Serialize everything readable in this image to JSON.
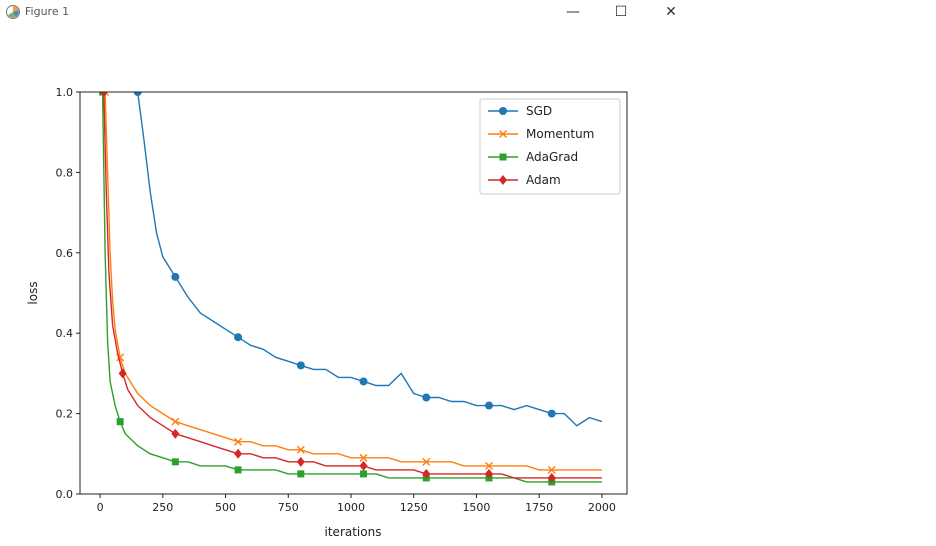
{
  "window": {
    "title": "Figure 1",
    "minimize_icon": "minimize-icon",
    "maximize_icon": "maximize-icon",
    "close_icon": "close-icon"
  },
  "chart_data": {
    "type": "line",
    "title": "",
    "xlabel": "iterations",
    "ylabel": "loss",
    "xlim": [
      -80,
      2100
    ],
    "ylim": [
      0,
      1.0
    ],
    "xticks": [
      0,
      250,
      500,
      750,
      1000,
      1250,
      1500,
      1750,
      2000
    ],
    "yticks": [
      0.0,
      0.2,
      0.4,
      0.6,
      0.8,
      1.0
    ],
    "legend_position": "top-right",
    "grid": false,
    "series": [
      {
        "name": "SGD",
        "color": "#1f77b4",
        "marker": "circle",
        "x": [
          150,
          175,
          200,
          225,
          250,
          300,
          350,
          400,
          450,
          500,
          550,
          600,
          650,
          700,
          750,
          800,
          850,
          900,
          950,
          1000,
          1050,
          1100,
          1150,
          1200,
          1250,
          1300,
          1350,
          1400,
          1450,
          1500,
          1550,
          1600,
          1650,
          1700,
          1750,
          1800,
          1850,
          1900,
          1950,
          2000
        ],
        "y": [
          1.0,
          0.88,
          0.75,
          0.65,
          0.59,
          0.54,
          0.49,
          0.45,
          0.43,
          0.41,
          0.39,
          0.37,
          0.36,
          0.34,
          0.33,
          0.32,
          0.31,
          0.31,
          0.29,
          0.29,
          0.28,
          0.27,
          0.27,
          0.3,
          0.25,
          0.24,
          0.24,
          0.23,
          0.23,
          0.22,
          0.22,
          0.22,
          0.21,
          0.22,
          0.21,
          0.2,
          0.2,
          0.17,
          0.19,
          0.18
        ]
      },
      {
        "name": "Momentum",
        "color": "#ff7f0e",
        "marker": "x",
        "x": [
          20,
          30,
          40,
          50,
          60,
          80,
          100,
          150,
          200,
          250,
          300,
          350,
          400,
          450,
          500,
          550,
          600,
          650,
          700,
          750,
          800,
          850,
          900,
          950,
          1000,
          1050,
          1100,
          1150,
          1200,
          1250,
          1300,
          1350,
          1400,
          1450,
          1500,
          1550,
          1600,
          1650,
          1700,
          1750,
          1800,
          1850,
          1900,
          1950,
          2000
        ],
        "y": [
          1.0,
          0.8,
          0.6,
          0.48,
          0.41,
          0.34,
          0.3,
          0.25,
          0.22,
          0.2,
          0.18,
          0.17,
          0.16,
          0.15,
          0.14,
          0.13,
          0.13,
          0.12,
          0.12,
          0.11,
          0.11,
          0.1,
          0.1,
          0.1,
          0.09,
          0.09,
          0.09,
          0.09,
          0.08,
          0.08,
          0.08,
          0.08,
          0.08,
          0.07,
          0.07,
          0.07,
          0.07,
          0.07,
          0.07,
          0.06,
          0.06,
          0.06,
          0.06,
          0.06,
          0.06
        ]
      },
      {
        "name": "AdaGrad",
        "color": "#2ca02c",
        "marker": "square",
        "x": [
          10,
          20,
          30,
          40,
          60,
          80,
          100,
          150,
          200,
          250,
          300,
          350,
          400,
          450,
          500,
          550,
          600,
          650,
          700,
          750,
          800,
          850,
          900,
          950,
          1000,
          1050,
          1100,
          1150,
          1200,
          1250,
          1300,
          1350,
          1400,
          1450,
          1500,
          1550,
          1600,
          1650,
          1700,
          1750,
          1800,
          1850,
          1900,
          1950,
          2000
        ],
        "y": [
          1.0,
          0.6,
          0.38,
          0.28,
          0.22,
          0.18,
          0.15,
          0.12,
          0.1,
          0.09,
          0.08,
          0.08,
          0.07,
          0.07,
          0.07,
          0.06,
          0.06,
          0.06,
          0.06,
          0.05,
          0.05,
          0.05,
          0.05,
          0.05,
          0.05,
          0.05,
          0.05,
          0.04,
          0.04,
          0.04,
          0.04,
          0.04,
          0.04,
          0.04,
          0.04,
          0.04,
          0.04,
          0.04,
          0.03,
          0.03,
          0.03,
          0.03,
          0.03,
          0.03,
          0.03
        ]
      },
      {
        "name": "Adam",
        "color": "#d62728",
        "marker": "diamond",
        "x": [
          15,
          25,
          35,
          50,
          70,
          90,
          110,
          150,
          200,
          250,
          300,
          350,
          400,
          450,
          500,
          550,
          600,
          650,
          700,
          750,
          800,
          850,
          900,
          950,
          1000,
          1050,
          1100,
          1150,
          1200,
          1250,
          1300,
          1350,
          1400,
          1450,
          1500,
          1550,
          1600,
          1650,
          1700,
          1750,
          1800,
          1850,
          1900,
          1950,
          2000
        ],
        "y": [
          1.0,
          0.75,
          0.55,
          0.42,
          0.35,
          0.3,
          0.26,
          0.22,
          0.19,
          0.17,
          0.15,
          0.14,
          0.13,
          0.12,
          0.11,
          0.1,
          0.1,
          0.09,
          0.09,
          0.08,
          0.08,
          0.08,
          0.07,
          0.07,
          0.07,
          0.07,
          0.06,
          0.06,
          0.06,
          0.06,
          0.05,
          0.05,
          0.05,
          0.05,
          0.05,
          0.05,
          0.05,
          0.04,
          0.04,
          0.04,
          0.04,
          0.04,
          0.04,
          0.04,
          0.04
        ]
      }
    ]
  }
}
